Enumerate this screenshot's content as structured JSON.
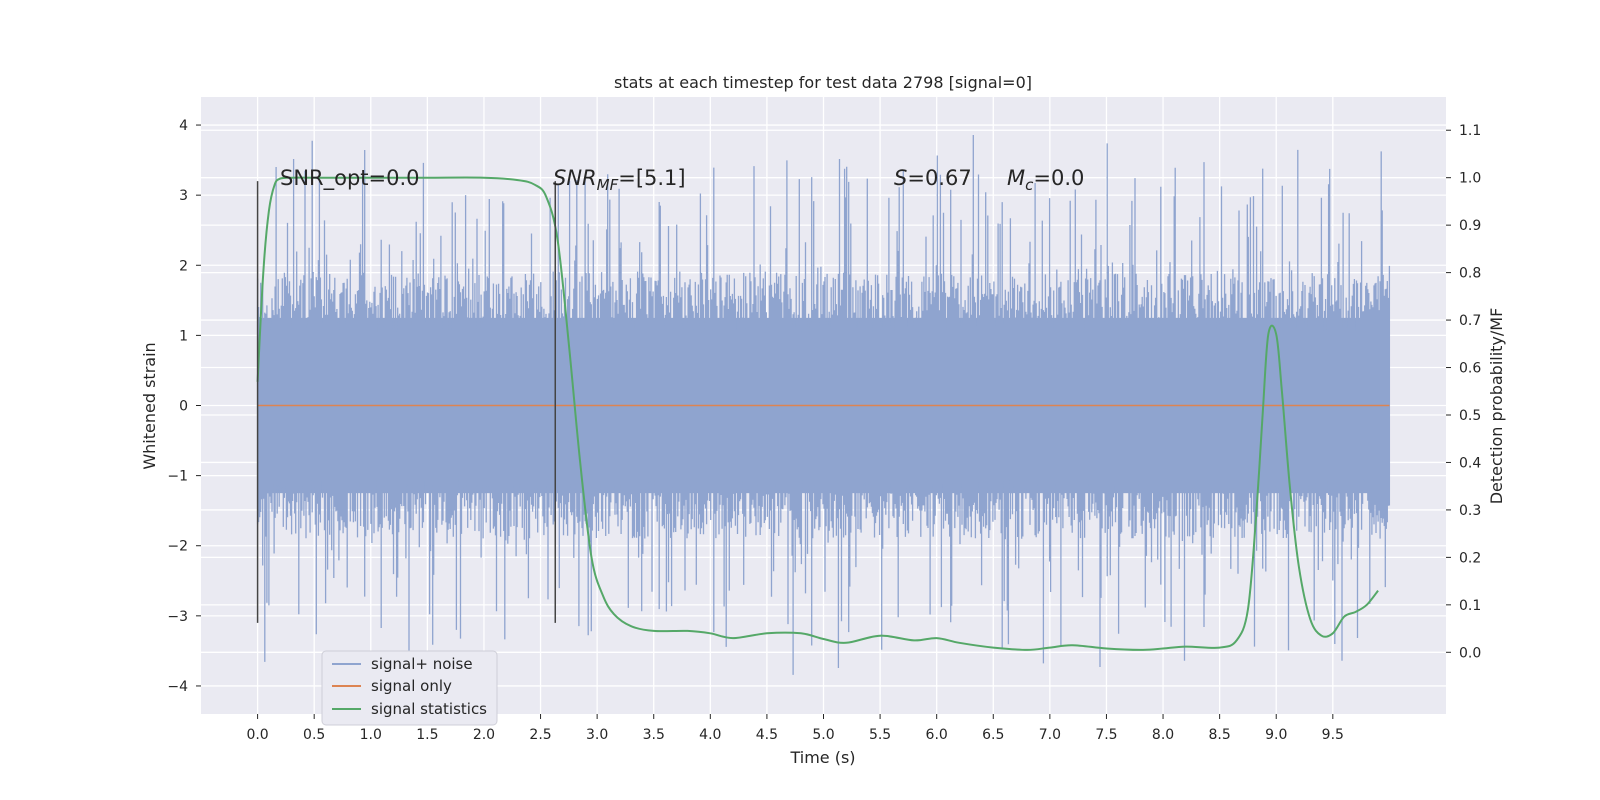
{
  "chart_data": {
    "type": "line",
    "title": "stats at each timestep for test data 2798 [signal=0]",
    "xlabel": "Time (s)",
    "ylabel": "Whitened strain",
    "ylabel_right": "Detection probability/MF",
    "xlim": [
      -0.5,
      10.5
    ],
    "ylim": [
      -4.4,
      4.4
    ],
    "ylim_right": [
      -0.13,
      1.17
    ],
    "x_ticks": [
      0.0,
      0.5,
      1.0,
      1.5,
      2.0,
      2.5,
      3.0,
      3.5,
      4.0,
      4.5,
      5.0,
      5.5,
      6.0,
      6.5,
      7.0,
      7.5,
      8.0,
      8.5,
      9.0,
      9.5
    ],
    "x_tick_labels": [
      "0.0",
      "0.5",
      "1.0",
      "1.5",
      "2.0",
      "2.5",
      "3.0",
      "3.5",
      "4.0",
      "4.5",
      "5.0",
      "5.5",
      "6.0",
      "6.5",
      "7.0",
      "7.5",
      "8.0",
      "8.5",
      "9.0",
      "9.5"
    ],
    "y_ticks": [
      -4,
      -3,
      -2,
      -1,
      0,
      1,
      2,
      3,
      4
    ],
    "y_tick_labels": [
      "−4",
      "−3",
      "−2",
      "−1",
      "0",
      "1",
      "2",
      "3",
      "4"
    ],
    "y_ticks_right": [
      0.0,
      0.1,
      0.2,
      0.3,
      0.4,
      0.5,
      0.6,
      0.7,
      0.8,
      0.9,
      1.0,
      1.1
    ],
    "y_tick_labels_right": [
      "0.0",
      "0.1",
      "0.2",
      "0.3",
      "0.4",
      "0.5",
      "0.6",
      "0.7",
      "0.8",
      "0.9",
      "1.0",
      "1.1"
    ],
    "grid": true,
    "legend_position": "lower-left",
    "series": [
      {
        "name": "signal+ noise",
        "color": "#8fa4cf",
        "axis": "left",
        "description_values": {
          "x_range": [
            0.0,
            10.0
          ],
          "band_typical": [
            -1.9,
            1.9
          ],
          "peak_max": 4.05,
          "peak_min": -3.95
        }
      },
      {
        "name": "signal only",
        "color": "#dd8452",
        "axis": "left",
        "x": [
          0.0,
          10.0
        ],
        "y": [
          0.0,
          0.0
        ]
      },
      {
        "name": "signal statistics",
        "color": "#55a868",
        "axis": "right",
        "x": [
          0.0,
          0.05,
          0.1,
          0.15,
          0.2,
          0.3,
          0.5,
          1.0,
          1.5,
          2.0,
          2.3,
          2.45,
          2.55,
          2.65,
          2.75,
          2.85,
          2.95,
          3.05,
          3.15,
          3.3,
          3.5,
          3.8,
          4.0,
          4.2,
          4.5,
          4.8,
          5.0,
          5.2,
          5.5,
          5.8,
          6.0,
          6.2,
          6.5,
          6.8,
          7.0,
          7.2,
          7.5,
          7.8,
          8.0,
          8.2,
          8.5,
          8.65,
          8.75,
          8.82,
          8.88,
          8.93,
          9.0,
          9.05,
          9.12,
          9.2,
          9.3,
          9.4,
          9.5,
          9.6,
          9.7,
          9.8,
          9.9
        ],
        "y": [
          0.57,
          0.8,
          0.93,
          0.985,
          0.998,
          1.0,
          1.0,
          1.0,
          1.0,
          1.0,
          0.995,
          0.985,
          0.96,
          0.87,
          0.65,
          0.4,
          0.2,
          0.12,
          0.08,
          0.055,
          0.045,
          0.045,
          0.04,
          0.03,
          0.04,
          0.04,
          0.028,
          0.02,
          0.035,
          0.025,
          0.03,
          0.02,
          0.01,
          0.005,
          0.01,
          0.015,
          0.008,
          0.005,
          0.008,
          0.012,
          0.01,
          0.025,
          0.09,
          0.28,
          0.5,
          0.67,
          0.67,
          0.55,
          0.35,
          0.18,
          0.07,
          0.035,
          0.04,
          0.075,
          0.085,
          0.1,
          0.13
        ]
      }
    ],
    "vertical_markers": [
      {
        "x": 0.0,
        "y_range": [
          -3.1,
          3.2
        ]
      },
      {
        "x": 2.63,
        "y_range": [
          -3.1,
          3.2
        ]
      }
    ],
    "annotations": {
      "snr_opt": "SNR_opt=0.0",
      "snr_mf_prefix": "SNR",
      "snr_mf_sub": "MF",
      "snr_mf_suffix": "=[5.1]",
      "s_prefix": "S",
      "s_suffix": "=0.67",
      "mc_prefix": "M",
      "mc_sub": "c",
      "mc_suffix": "=0.0"
    }
  }
}
